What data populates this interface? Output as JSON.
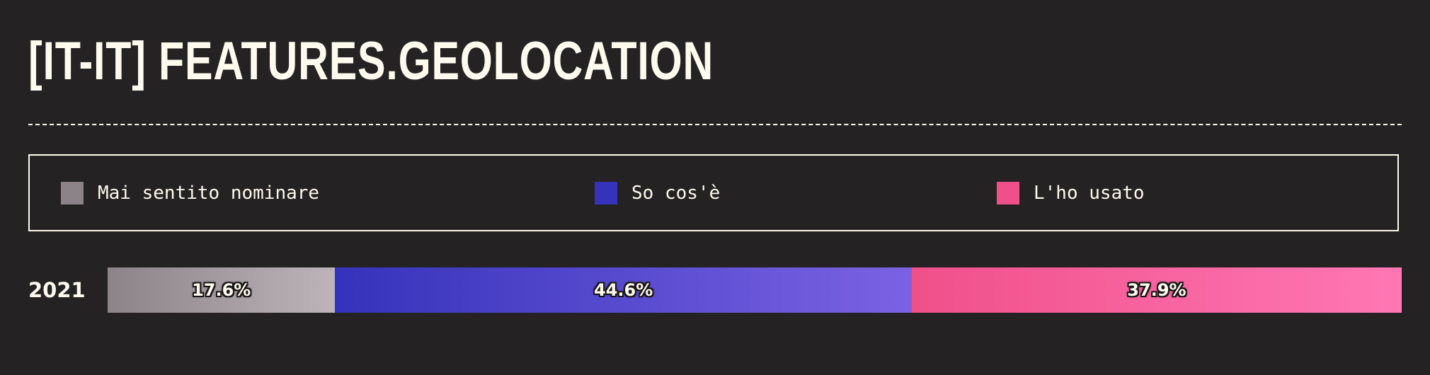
{
  "title": "[IT-IT] FEATURES.GEOLOCATION",
  "chart_data": {
    "type": "bar",
    "orientation": "horizontal",
    "stacked": true,
    "normalized": true,
    "title": "[IT-IT] FEATURES.GEOLOCATION",
    "categories": [
      "2021"
    ],
    "series": [
      {
        "name": "Mai sentito nominare",
        "values": [
          17.6
        ],
        "value_label": "17.6%",
        "color": "#8c8389",
        "color_end": "#bcb4b9"
      },
      {
        "name": "So cos'è",
        "values": [
          44.6
        ],
        "value_label": "44.6%",
        "color": "#3533bb",
        "color_end": "#7b62e3"
      },
      {
        "name": "L'ho usato",
        "values": [
          37.9
        ],
        "value_label": "37.9%",
        "color": "#f0508a",
        "color_end": "#ff77b4"
      }
    ],
    "legend_position": "top",
    "grid": false
  }
}
